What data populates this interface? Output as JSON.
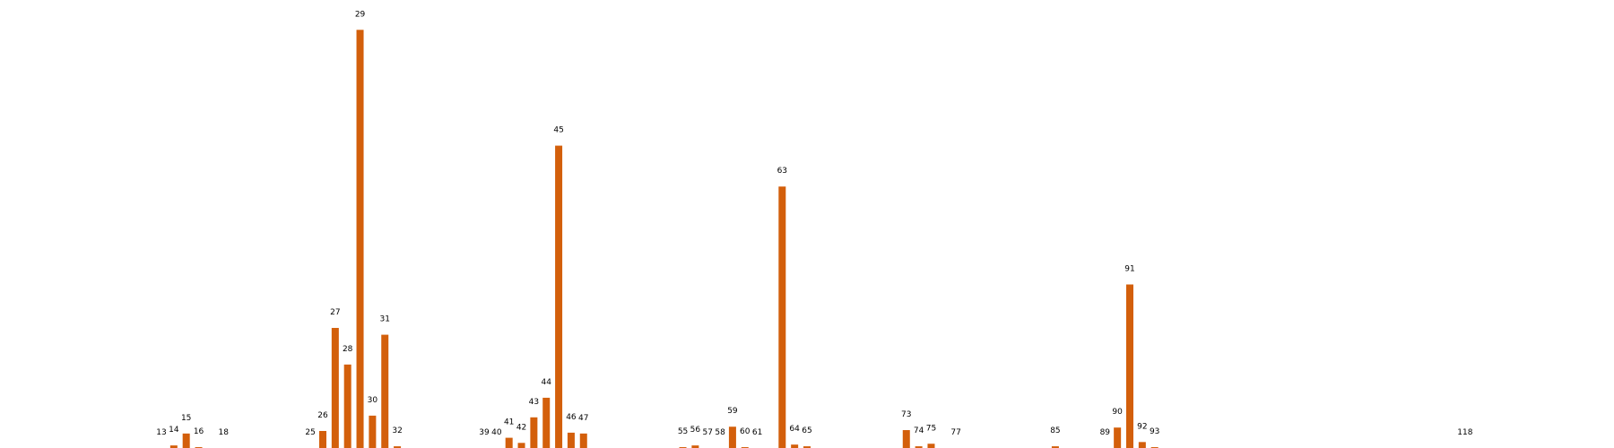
{
  "chart_data": {
    "type": "bar",
    "categories": [
      13,
      14,
      15,
      16,
      18,
      25,
      26,
      27,
      28,
      29,
      30,
      31,
      32,
      39,
      40,
      41,
      42,
      43,
      44,
      45,
      46,
      47,
      55,
      56,
      57,
      58,
      59,
      60,
      61,
      63,
      64,
      65,
      73,
      74,
      75,
      77,
      85,
      89,
      90,
      91,
      92,
      93,
      118
    ],
    "values": [
      0,
      3,
      17,
      1,
      0,
      0,
      20,
      141,
      98,
      491,
      38,
      133,
      2,
      0,
      0,
      12,
      6,
      36,
      59,
      355,
      18,
      17,
      1,
      3,
      0,
      0,
      25,
      1,
      0,
      307,
      4,
      2,
      21,
      2,
      5,
      0,
      2,
      0,
      24,
      192,
      7,
      1,
      0
    ],
    "xlim": [
      0,
      130
    ],
    "ylim": [
      0,
      505
    ],
    "bar_color": "#d35f0b",
    "grid": false,
    "axes_visible": false
  }
}
